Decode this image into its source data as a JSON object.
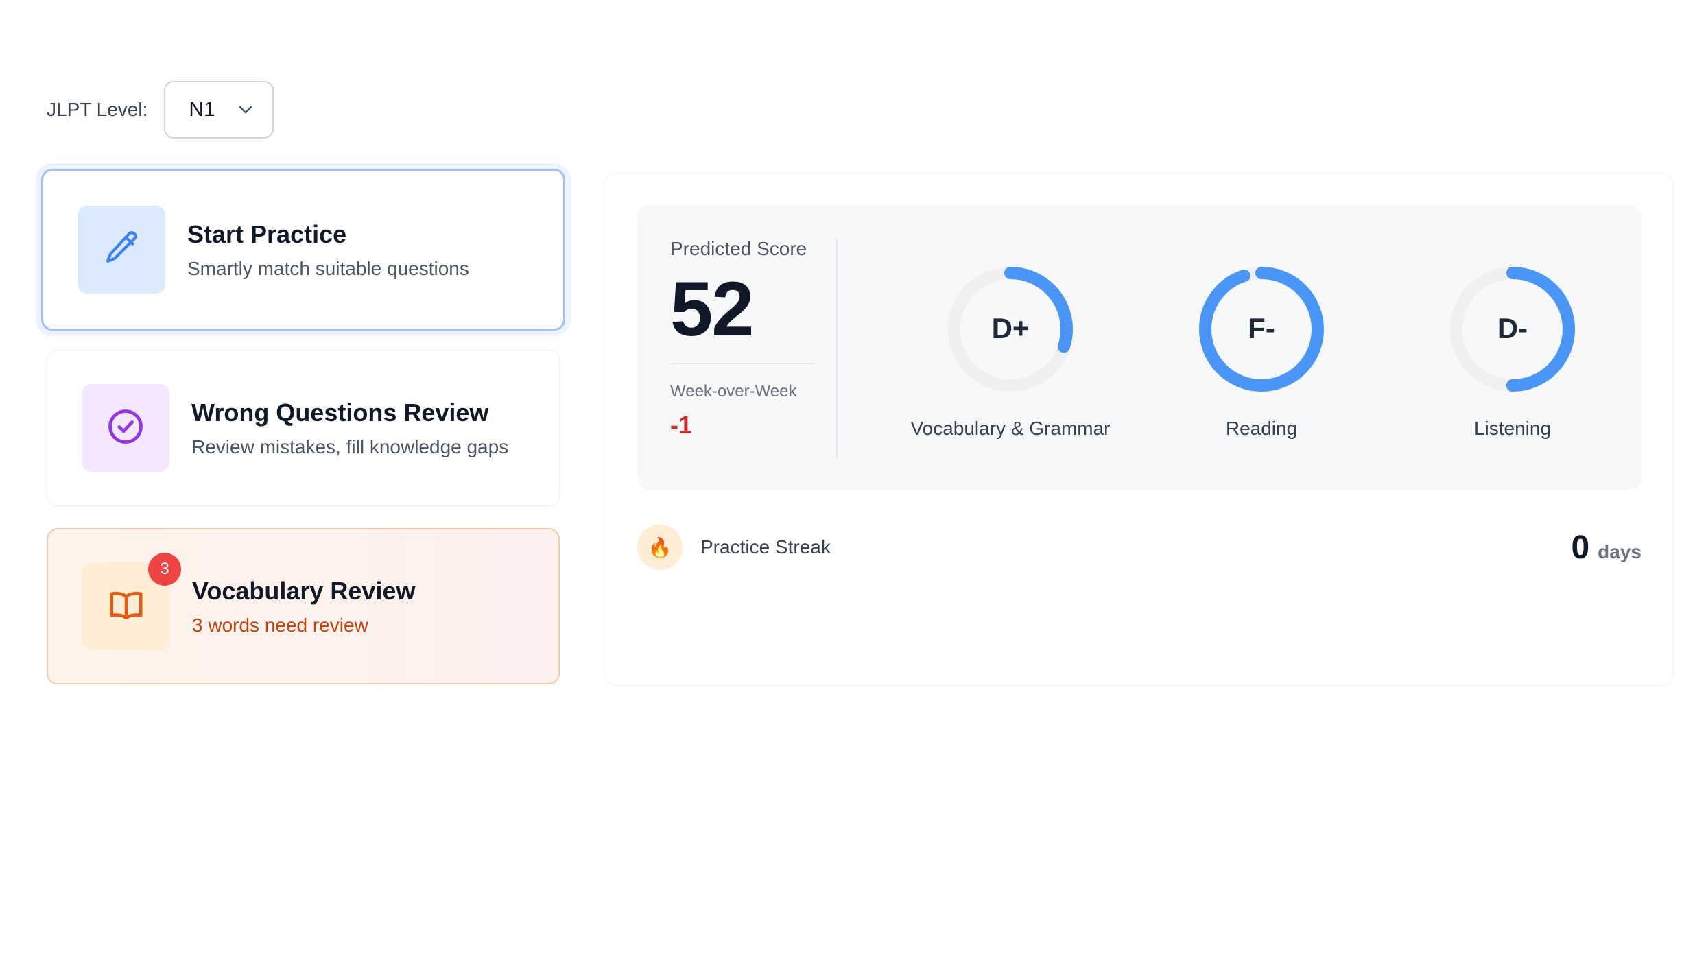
{
  "level": {
    "label": "JLPT Level:",
    "value": "N1",
    "icon": "chevron-down-icon"
  },
  "cards": {
    "start": {
      "title": "Start Practice",
      "subtitle": "Smartly match suitable questions",
      "icon": "pencil-icon",
      "color": "#3b82f6"
    },
    "wrong": {
      "title": "Wrong Questions Review",
      "subtitle": "Review mistakes, fill knowledge gaps",
      "icon": "check-circle-icon",
      "color": "#9333ea"
    },
    "vocab": {
      "title": "Vocabulary Review",
      "subtitle": "3 words need review",
      "icon": "book-icon",
      "badge": "3",
      "color": "#ea580c"
    }
  },
  "prediction": {
    "label": "Predicted Score",
    "score": "52",
    "wow_label": "Week-over-Week",
    "wow_value": "-1"
  },
  "sections": [
    {
      "grade": "D+",
      "label": "Vocabulary & Grammar",
      "fill": 0.3
    },
    {
      "grade": "F-",
      "label": "Reading",
      "fill": 0.95
    },
    {
      "grade": "D-",
      "label": "Listening",
      "fill": 0.5
    }
  ],
  "streak": {
    "label": "Practice Streak",
    "value": "0",
    "unit": "days",
    "icon": "flame-icon"
  },
  "colors": {
    "accent": "#3b82f6",
    "track": "#f0f0f2",
    "negative": "#dc2626"
  }
}
